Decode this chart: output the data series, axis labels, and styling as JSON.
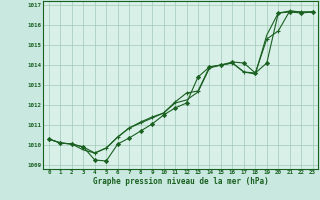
{
  "title": "Graphe pression niveau de la mer (hPa)",
  "background_color": "#c8e8e0",
  "plot_bg_color": "#d8f0e8",
  "grid_color": "#a0c8b8",
  "line_color": "#1a6020",
  "xlim": [
    -0.5,
    23.5
  ],
  "ylim": [
    1008.8,
    1017.2
  ],
  "yticks": [
    1009,
    1010,
    1011,
    1012,
    1013,
    1014,
    1015,
    1016,
    1017
  ],
  "xtick_labels": [
    "0",
    "1",
    "2",
    "3",
    "4",
    "5",
    "6",
    "7",
    "8",
    "9",
    "10",
    "11",
    "12",
    "13",
    "14",
    "15",
    "16",
    "17",
    "18",
    "19",
    "20",
    "21",
    "22",
    "23"
  ],
  "series1": {
    "x": [
      0,
      1,
      2,
      3,
      4,
      5,
      6,
      7,
      8,
      9,
      10,
      11,
      12,
      13,
      14,
      15,
      16,
      17,
      18,
      19,
      20,
      21,
      22,
      23
    ],
    "y": [
      1010.3,
      1010.1,
      1010.05,
      1009.9,
      1009.25,
      1009.2,
      1010.05,
      1010.35,
      1010.7,
      1011.05,
      1011.5,
      1011.85,
      1012.1,
      1013.4,
      1013.9,
      1014.0,
      1014.15,
      1014.1,
      1013.6,
      1014.1,
      1016.6,
      1016.65,
      1016.6,
      1016.65
    ],
    "marker": "D",
    "markersize": 2.2
  },
  "series2": {
    "x": [
      0,
      1,
      2,
      3,
      4,
      5,
      6,
      7,
      8,
      9,
      10,
      11,
      12,
      13,
      14,
      15,
      16,
      17,
      18,
      19,
      20,
      21,
      22,
      23
    ],
    "y": [
      1010.3,
      1010.1,
      1010.05,
      1009.75,
      1009.6,
      1009.85,
      1010.4,
      1010.85,
      1011.1,
      1011.35,
      1011.6,
      1012.1,
      1012.25,
      1012.65,
      1013.85,
      1014.0,
      1014.1,
      1013.65,
      1013.55,
      1015.5,
      1016.6,
      1016.7,
      1016.65,
      1016.65
    ],
    "marker": null,
    "markersize": 0
  },
  "series3": {
    "x": [
      0,
      1,
      2,
      3,
      4,
      5,
      6,
      7,
      8,
      9,
      10,
      11,
      12,
      13,
      14,
      15,
      16,
      17,
      18,
      19,
      20,
      21,
      22,
      23
    ],
    "y": [
      1010.3,
      1010.1,
      1010.05,
      1009.9,
      1009.6,
      1009.85,
      1010.4,
      1010.85,
      1011.15,
      1011.4,
      1011.6,
      1012.15,
      1012.6,
      1012.7,
      1013.9,
      1014.0,
      1014.1,
      1013.65,
      1013.6,
      1015.3,
      1015.7,
      1016.7,
      1016.65,
      1016.65
    ],
    "marker": "+",
    "markersize": 3.5
  }
}
